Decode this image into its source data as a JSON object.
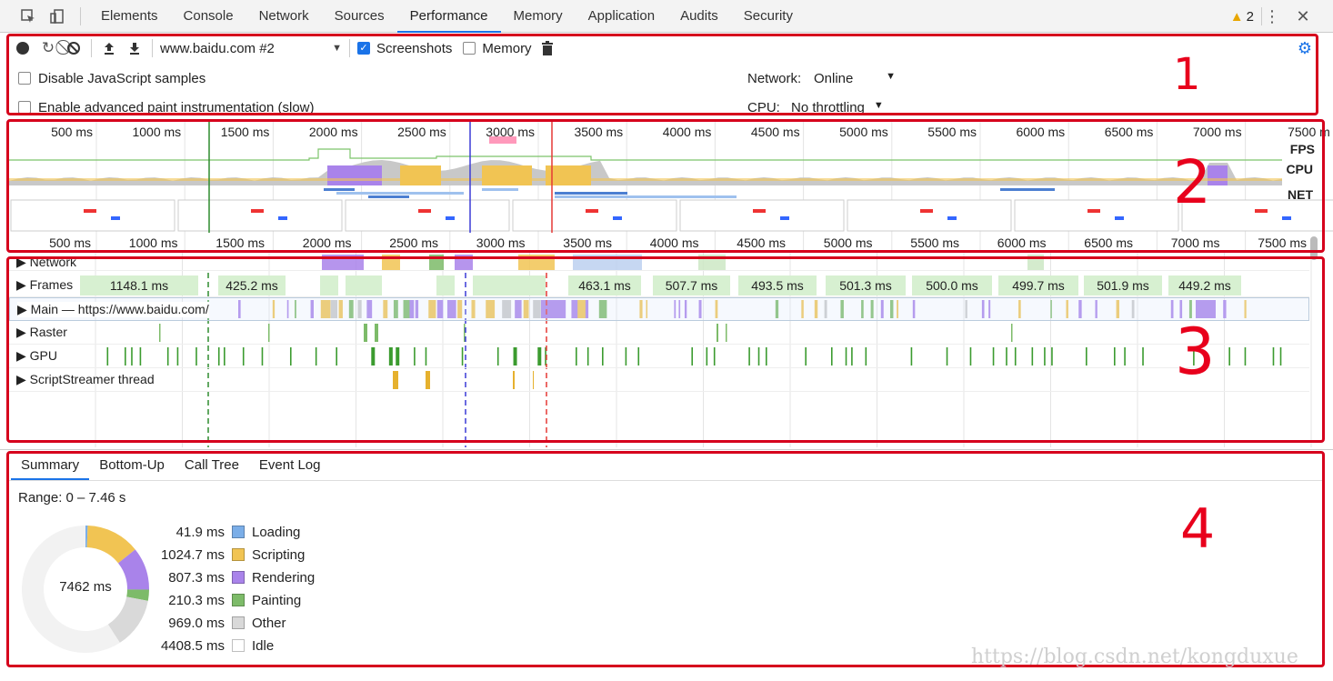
{
  "tabs": [
    "Elements",
    "Console",
    "Network",
    "Sources",
    "Performance",
    "Memory",
    "Application",
    "Audits",
    "Security"
  ],
  "active_tab": "Performance",
  "warning_count": "2",
  "toolbar": {
    "profile_select": "www.baidu.com #2",
    "screenshots_label": "Screenshots",
    "memory_label": "Memory",
    "disable_js_label": "Disable JavaScript samples",
    "paint_label": "Enable advanced paint instrumentation (slow)",
    "network_label": "Network:",
    "network_value": "Online",
    "cpu_label": "CPU:",
    "cpu_value": "No throttling"
  },
  "overview": {
    "ruler_labels": [
      "500 ms",
      "1000 ms",
      "1500 ms",
      "2000 ms",
      "2500 ms",
      "3000 ms",
      "3500 ms",
      "4000 ms",
      "4500 ms",
      "5000 ms",
      "5500 ms",
      "6000 ms",
      "6500 ms",
      "7000 ms",
      "7500 m"
    ],
    "fps_label": "FPS",
    "cpu_label": "CPU",
    "net_label": "NET"
  },
  "flame_ruler_labels": [
    "500 ms",
    "1000 ms",
    "1500 ms",
    "2000 ms",
    "2500 ms",
    "3000 ms",
    "3500 ms",
    "4000 ms",
    "4500 ms",
    "5000 ms",
    "5500 ms",
    "6000 ms",
    "6500 ms",
    "7000 ms",
    "7500 ms"
  ],
  "tracks": {
    "network": "Network",
    "frames": "Frames",
    "main": "Main — https://www.baidu.com/",
    "raster": "Raster",
    "gpu": "GPU",
    "scriptstreamer": "ScriptStreamer thread"
  },
  "frame_times": [
    "1148.1 ms",
    "425.2 ms",
    "463.1 ms",
    "507.7 ms",
    "493.5 ms",
    "501.3 ms",
    "500.0 ms",
    "499.7 ms",
    "501.9 ms",
    "449.2 ms"
  ],
  "summary": {
    "tabs": [
      "Summary",
      "Bottom-Up",
      "Call Tree",
      "Event Log"
    ],
    "range": "Range: 0 – 7.46 s",
    "total": "7462 ms",
    "items": [
      {
        "value": "41.9 ms",
        "label": "Loading",
        "color": "#7baee8"
      },
      {
        "value": "1024.7 ms",
        "label": "Scripting",
        "color": "#f1c453"
      },
      {
        "value": "807.3 ms",
        "label": "Rendering",
        "color": "#a983ea"
      },
      {
        "value": "210.3 ms",
        "label": "Painting",
        "color": "#7dbb69"
      },
      {
        "value": "969.0 ms",
        "label": "Other",
        "color": "#d9d9d9"
      },
      {
        "value": "4408.5 ms",
        "label": "Idle",
        "color": "#ffffff"
      }
    ]
  },
  "annotations": [
    "1",
    "2",
    "3",
    "4"
  ],
  "watermark": "https://blog.csdn.net/kongduxue"
}
